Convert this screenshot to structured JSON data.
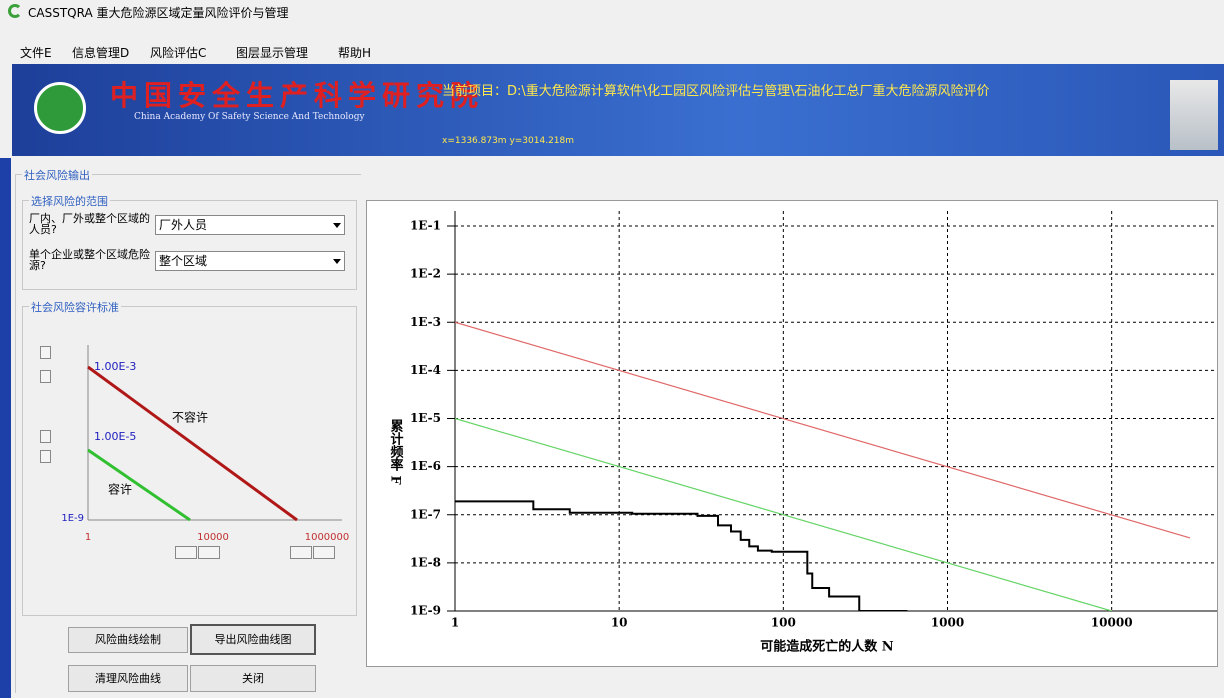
{
  "window": {
    "title": "CASSTQRA 重大危险源区域定量风险评价与管理"
  },
  "menu": [
    "文件E",
    "信息管理D",
    "风险评估C",
    "图层显示管理",
    "帮助H"
  ],
  "banner": {
    "org_cn": "中国安全生产科学研究院",
    "org_en": "China Academy Of Safety Science And Technology",
    "project": "当前项目：D:\\重大危险源计算软件\\化工园区风险评估与管理\\石油化工总厂重大危险源风险评价",
    "coords": "x=1336.873m  y=3014.218m"
  },
  "panel": {
    "title": "社会风险输出",
    "scope": {
      "title": "选择风险的范围",
      "fields": [
        {
          "label": "厂内、厂外或整个区域的人员?",
          "value": "厂外人员"
        },
        {
          "label": "单个企业或整个区域危险源?",
          "value": "整个区域"
        }
      ]
    },
    "criteria": {
      "title": "社会风险容许标准",
      "upper": "1.00E-3",
      "lower": "1.00E-5",
      "ymin": "1E-9",
      "x_start": "1",
      "x_mid": "10000",
      "x_end": "1000000",
      "unacceptable": "不容许",
      "acceptable": "容许"
    },
    "buttons": [
      "风险曲线绘制",
      "导出风险曲线图",
      "清理风险曲线",
      "关闭"
    ]
  },
  "chart_data": {
    "type": "line",
    "xlabel": "可能造成死亡的人数 N",
    "ylabel": "累计频率 F",
    "xscale": "log",
    "yscale": "log",
    "grid": true,
    "xlim": [
      1,
      30000
    ],
    "ylim": [
      1e-09,
      0.1
    ],
    "xticks": [
      1,
      10,
      100,
      1000,
      10000
    ],
    "yticks": [
      {
        "value": 0.1,
        "label": "1E-1"
      },
      {
        "value": 0.01,
        "label": "1E-2"
      },
      {
        "value": 0.001,
        "label": "1E-3"
      },
      {
        "value": 0.0001,
        "label": "1E-4"
      },
      {
        "value": 1e-05,
        "label": "1E-5"
      },
      {
        "value": 1e-06,
        "label": "1E-6"
      },
      {
        "value": 1e-07,
        "label": "1E-7"
      },
      {
        "value": 1e-08,
        "label": "1E-8"
      },
      {
        "value": 1e-09,
        "label": "1E-9"
      }
    ],
    "series": [
      {
        "color": "#e06868",
        "x": [
          1,
          30000
        ],
        "values": [
          0.001,
          3.3e-08
        ]
      },
      {
        "color": "#66d466",
        "x": [
          1,
          10000
        ],
        "values": [
          1e-05,
          1e-09
        ]
      },
      {
        "color": "#000000",
        "x": [
          1,
          3,
          3,
          5,
          5,
          12,
          12,
          30,
          30,
          40,
          40,
          48,
          48,
          55,
          55,
          62,
          62,
          70,
          70,
          85,
          85,
          140,
          140,
          150,
          150,
          190,
          190,
          290,
          290,
          570
        ],
        "values": [
          1.9e-07,
          1.9e-07,
          1.3e-07,
          1.3e-07,
          1.1e-07,
          1.1e-07,
          1.05e-07,
          1.05e-07,
          9.5e-08,
          9.5e-08,
          6e-08,
          6e-08,
          4.5e-08,
          4.5e-08,
          3e-08,
          3e-08,
          2.2e-08,
          2.2e-08,
          1.8e-08,
          1.8e-08,
          1.7e-08,
          1.7e-08,
          6e-09,
          6e-09,
          3e-09,
          3e-09,
          2e-09,
          2e-09,
          1e-09,
          1e-09
        ]
      }
    ]
  }
}
